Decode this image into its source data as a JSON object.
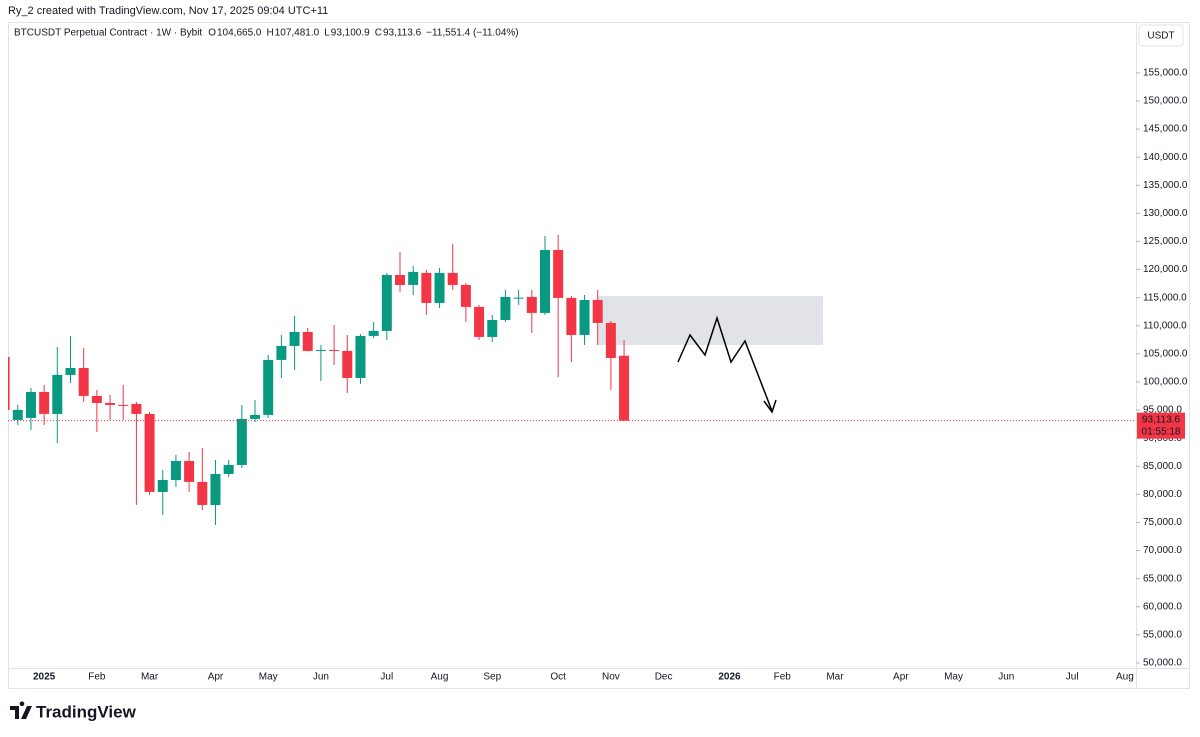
{
  "header": {
    "created": "Ry_2 created with TradingView.com, Nov 17, 2025 09:04 UTC+11",
    "symbol": "BTCUSDT Perpetual Contract · 1W · Bybit",
    "legend": [
      {
        "key": "O",
        "value": "104,665.0"
      },
      {
        "key": "H",
        "value": "107,481.0"
      },
      {
        "key": "L",
        "value": "93,100.9"
      },
      {
        "key": "C",
        "value": "93,113.6"
      }
    ],
    "change": "−11,551.4 (−11.04%)",
    "currency": "USDT"
  },
  "footer": {
    "brand": "TradingView"
  },
  "chart_data": {
    "type": "candlestick",
    "up_color": "#089981",
    "down_color": "#f23645",
    "last_price_label": "93,113.6",
    "countdown": "01:55:18",
    "ylim": [
      49100,
      164050
    ],
    "yticks": [
      {
        "value": 50000,
        "label": "50,000.0"
      },
      {
        "value": 55000,
        "label": "55,000.0"
      },
      {
        "value": 60000,
        "label": "60,000.0"
      },
      {
        "value": 65000,
        "label": "65,000.0"
      },
      {
        "value": 70000,
        "label": "70,000.0"
      },
      {
        "value": 75000,
        "label": "75,000.0"
      },
      {
        "value": 80000,
        "label": "80,000.0"
      },
      {
        "value": 85000,
        "label": "85,000.0"
      },
      {
        "value": 90000,
        "label": "90,000.0"
      },
      {
        "value": 95000,
        "label": "95,000.0"
      },
      {
        "value": 100000,
        "label": "100,000.0"
      },
      {
        "value": 105000,
        "label": "105,000.0"
      },
      {
        "value": 110000,
        "label": "110,000.0"
      },
      {
        "value": 115000,
        "label": "115,000.0"
      },
      {
        "value": 120000,
        "label": "120,000.0"
      },
      {
        "value": 125000,
        "label": "125,000.0"
      },
      {
        "value": 130000,
        "label": "130,000.0"
      },
      {
        "value": 135000,
        "label": "135,000.0"
      },
      {
        "value": 140000,
        "label": "140,000.0"
      },
      {
        "value": 145000,
        "label": "145,000.0"
      },
      {
        "value": 150000,
        "label": "150,000.0"
      },
      {
        "value": 155000,
        "label": "155,000.0"
      }
    ],
    "categories": [
      null,
      null,
      null,
      "2025",
      null,
      null,
      null,
      "Feb",
      null,
      null,
      null,
      "Mar",
      null,
      null,
      null,
      null,
      "Apr",
      null,
      null,
      null,
      "May",
      null,
      null,
      null,
      "Jun",
      null,
      null,
      null,
      null,
      "Jul",
      null,
      null,
      null,
      "Aug",
      null,
      null,
      null,
      "Sep",
      null,
      null,
      null,
      null,
      "Oct",
      null,
      null,
      null,
      "Nov",
      null,
      null,
      null,
      "Dec",
      null,
      null,
      null,
      null,
      "2026",
      null,
      null,
      null,
      "Feb",
      null,
      null,
      null,
      "Mar",
      null,
      null,
      null,
      null,
      "Apr",
      null,
      null,
      null,
      "May",
      null,
      null,
      null,
      "Jun",
      null,
      null,
      null,
      null,
      "Jul",
      null,
      null,
      null,
      "Aug"
    ],
    "open": [
      104450,
      93240,
      93600,
      98220,
      94310,
      101250,
      102490,
      97510,
      96260,
      95910,
      96090,
      94310,
      80430,
      82560,
      85940,
      82210,
      78110,
      83630,
      85230,
      93420,
      94130,
      103920,
      106410,
      108900,
      105600,
      105700,
      105520,
      100710,
      108190,
      109080,
      119040,
      117260,
      119400,
      114060,
      119400,
      117260,
      113350,
      108010,
      111030,
      114950,
      115130,
      112280,
      123490,
      114950,
      108360,
      114590,
      110500,
      104665,
      null,
      null,
      null,
      null,
      null,
      null,
      null,
      null,
      null,
      null,
      null,
      null,
      null,
      null,
      null,
      null,
      null,
      null,
      null,
      null,
      null,
      null,
      null,
      null,
      null,
      null,
      null,
      null,
      null,
      null,
      null,
      null,
      null,
      null,
      null,
      null,
      null,
      null
    ],
    "high": [
      105000,
      95910,
      98930,
      99470,
      106230,
      108190,
      106050,
      98580,
      97690,
      99470,
      96440,
      94660,
      84340,
      87010,
      87540,
      88260,
      86120,
      86120,
      95910,
      96800,
      104810,
      108360,
      111740,
      109610,
      106590,
      110140,
      108360,
      108540,
      110680,
      119400,
      123130,
      120640,
      119930,
      120290,
      124560,
      117620,
      113700,
      111920,
      116370,
      116370,
      116370,
      125980,
      126160,
      115300,
      115480,
      116370,
      110860,
      107481,
      null,
      null,
      null,
      null,
      null,
      null,
      null,
      null,
      null,
      null,
      null,
      null,
      null,
      null,
      null,
      null,
      null,
      null,
      null,
      null,
      null,
      null,
      null,
      null,
      null,
      null,
      null,
      null,
      null,
      null,
      null,
      null,
      null,
      null,
      null,
      null,
      null,
      null
    ],
    "low": [
      94500,
      92350,
      91460,
      92350,
      89140,
      99820,
      96440,
      91100,
      93240,
      93240,
      78110,
      79890,
      76340,
      81320,
      80430,
      77220,
      74560,
      83100,
      84700,
      92880,
      93600,
      100710,
      102140,
      105400,
      100180,
      103030,
      98040,
      99650,
      107830,
      107480,
      116020,
      115480,
      111920,
      113170,
      116370,
      110680,
      107480,
      107120,
      110680,
      113700,
      108720,
      111920,
      100890,
      103560,
      106590,
      106590,
      98580,
      93100.9,
      null,
      null,
      null,
      null,
      null,
      null,
      null,
      null,
      null,
      null,
      null,
      null,
      null,
      null,
      null,
      null,
      null,
      null,
      null,
      null,
      null,
      null,
      null,
      null,
      null,
      null,
      null,
      null,
      null,
      null,
      null,
      null,
      null,
      null,
      null,
      null,
      null,
      null
    ],
    "close": [
      95020,
      95020,
      98220,
      94310,
      101250,
      102490,
      97510,
      96260,
      95910,
      95900,
      94310,
      80430,
      82560,
      85940,
      82210,
      78110,
      83630,
      85230,
      93420,
      94130,
      103920,
      106410,
      108900,
      105520,
      105700,
      105600,
      100710,
      108190,
      109080,
      119040,
      117260,
      119580,
      114060,
      119400,
      117260,
      113350,
      108010,
      111030,
      115130,
      115000,
      112280,
      123490,
      114950,
      108360,
      114590,
      110500,
      104270,
      93113.6,
      null,
      null,
      null,
      null,
      null,
      null,
      null,
      null,
      null,
      null,
      null,
      null,
      null,
      null,
      null,
      null,
      null,
      null,
      null,
      null,
      null,
      null,
      null,
      null,
      null,
      null,
      null,
      null,
      null,
      null,
      null,
      null,
      null,
      null,
      null,
      null,
      null,
      null
    ]
  }
}
